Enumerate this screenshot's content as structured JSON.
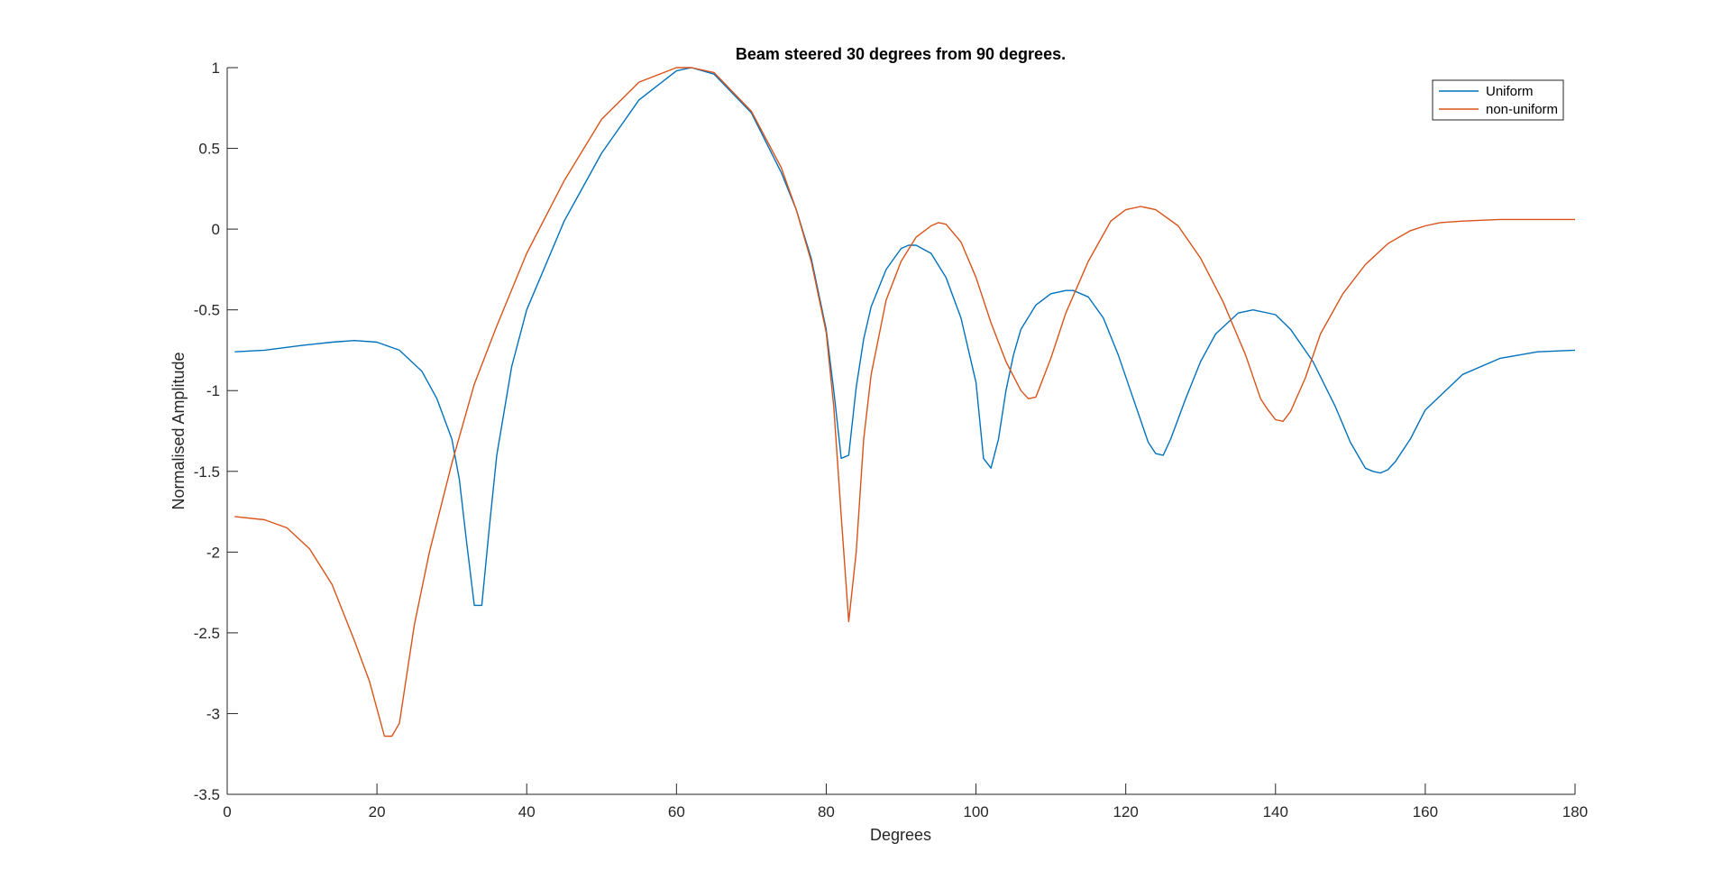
{
  "chart_data": {
    "type": "line",
    "title": "Beam steered 30 degrees from 90 degrees.",
    "xlabel": "Degrees",
    "ylabel": "Normalised Amplitude",
    "xlim": [
      0,
      180
    ],
    "ylim": [
      -3.5,
      1
    ],
    "xticks": [
      0,
      20,
      40,
      60,
      80,
      100,
      120,
      140,
      160,
      180
    ],
    "yticks": [
      1,
      0.5,
      0,
      -0.5,
      -1,
      -1.5,
      -2,
      -2.5,
      -3,
      -3.5
    ],
    "xtick_labels": [
      "0",
      "20",
      "40",
      "60",
      "80",
      "100",
      "120",
      "140",
      "160",
      "180"
    ],
    "ytick_labels": [
      "1",
      "0.5",
      "0",
      "-0.5",
      "-1",
      "-1.5",
      "-2",
      "-2.5",
      "-3",
      "-3.5"
    ],
    "grid": false,
    "legend_position": "top-right",
    "series": [
      {
        "name": "Uniform",
        "color": "#0072BD",
        "x": [
          1,
          5,
          10,
          14,
          17,
          20,
          23,
          26,
          28,
          30,
          31,
          32,
          33,
          34,
          35,
          36,
          38,
          40,
          45,
          50,
          55,
          60,
          62,
          65,
          70,
          74,
          76,
          78,
          80,
          81,
          82,
          83,
          84,
          85,
          86,
          88,
          90,
          91,
          92,
          94,
          96,
          98,
          100,
          101,
          102,
          103,
          104,
          105,
          106,
          108,
          110,
          112,
          113,
          115,
          117,
          119,
          121,
          123,
          124,
          125,
          126,
          128,
          130,
          132,
          135,
          137,
          140,
          142,
          145,
          148,
          150,
          152,
          153,
          154,
          155,
          156,
          158,
          160,
          165,
          170,
          175,
          180
        ],
        "y": [
          -0.76,
          -0.75,
          -0.72,
          -0.7,
          -0.69,
          -0.7,
          -0.75,
          -0.88,
          -1.05,
          -1.3,
          -1.55,
          -1.95,
          -2.33,
          -2.33,
          -1.85,
          -1.4,
          -0.85,
          -0.5,
          0.05,
          0.47,
          0.8,
          0.98,
          1.0,
          0.96,
          0.72,
          0.35,
          0.12,
          -0.18,
          -0.62,
          -1.0,
          -1.42,
          -1.4,
          -0.98,
          -0.68,
          -0.48,
          -0.25,
          -0.12,
          -0.1,
          -0.1,
          -0.15,
          -0.3,
          -0.55,
          -0.95,
          -1.42,
          -1.48,
          -1.3,
          -1.0,
          -0.78,
          -0.62,
          -0.47,
          -0.4,
          -0.38,
          -0.38,
          -0.42,
          -0.55,
          -0.78,
          -1.05,
          -1.32,
          -1.39,
          -1.4,
          -1.3,
          -1.05,
          -0.82,
          -0.65,
          -0.52,
          -0.5,
          -0.53,
          -0.62,
          -0.82,
          -1.1,
          -1.32,
          -1.48,
          -1.5,
          -1.51,
          -1.49,
          -1.44,
          -1.3,
          -1.12,
          -0.9,
          -0.8,
          -0.76,
          -0.75
        ]
      },
      {
        "name": "non-uniform",
        "color": "#D95319",
        "x": [
          1,
          5,
          8,
          11,
          14,
          17,
          19,
          20,
          21,
          22,
          23,
          25,
          27,
          30,
          33,
          36,
          40,
          45,
          50,
          55,
          60,
          62,
          65,
          70,
          74,
          76,
          78,
          80,
          81,
          82,
          83,
          84,
          85,
          86,
          88,
          90,
          92,
          94,
          95,
          96,
          98,
          100,
          102,
          104,
          106,
          107,
          108,
          110,
          112,
          115,
          118,
          120,
          122,
          124,
          127,
          130,
          133,
          136,
          138,
          139,
          140,
          141,
          142,
          144,
          146,
          149,
          152,
          155,
          158,
          160,
          162,
          165,
          170,
          175,
          180
        ],
        "y": [
          -1.78,
          -1.8,
          -1.85,
          -1.98,
          -2.2,
          -2.55,
          -2.8,
          -2.97,
          -3.14,
          -3.14,
          -3.06,
          -2.45,
          -2.0,
          -1.45,
          -0.96,
          -0.6,
          -0.15,
          0.3,
          0.68,
          0.91,
          1.0,
          1.0,
          0.97,
          0.73,
          0.38,
          0.12,
          -0.2,
          -0.64,
          -1.1,
          -1.78,
          -2.43,
          -2.0,
          -1.3,
          -0.9,
          -0.44,
          -0.2,
          -0.05,
          0.02,
          0.04,
          0.03,
          -0.08,
          -0.3,
          -0.58,
          -0.82,
          -1.0,
          -1.05,
          -1.04,
          -0.8,
          -0.52,
          -0.2,
          0.05,
          0.12,
          0.14,
          0.12,
          0.02,
          -0.18,
          -0.45,
          -0.78,
          -1.05,
          -1.12,
          -1.18,
          -1.19,
          -1.13,
          -0.92,
          -0.65,
          -0.4,
          -0.22,
          -0.09,
          -0.01,
          0.02,
          0.04,
          0.05,
          0.06,
          0.06,
          0.06
        ]
      }
    ]
  }
}
